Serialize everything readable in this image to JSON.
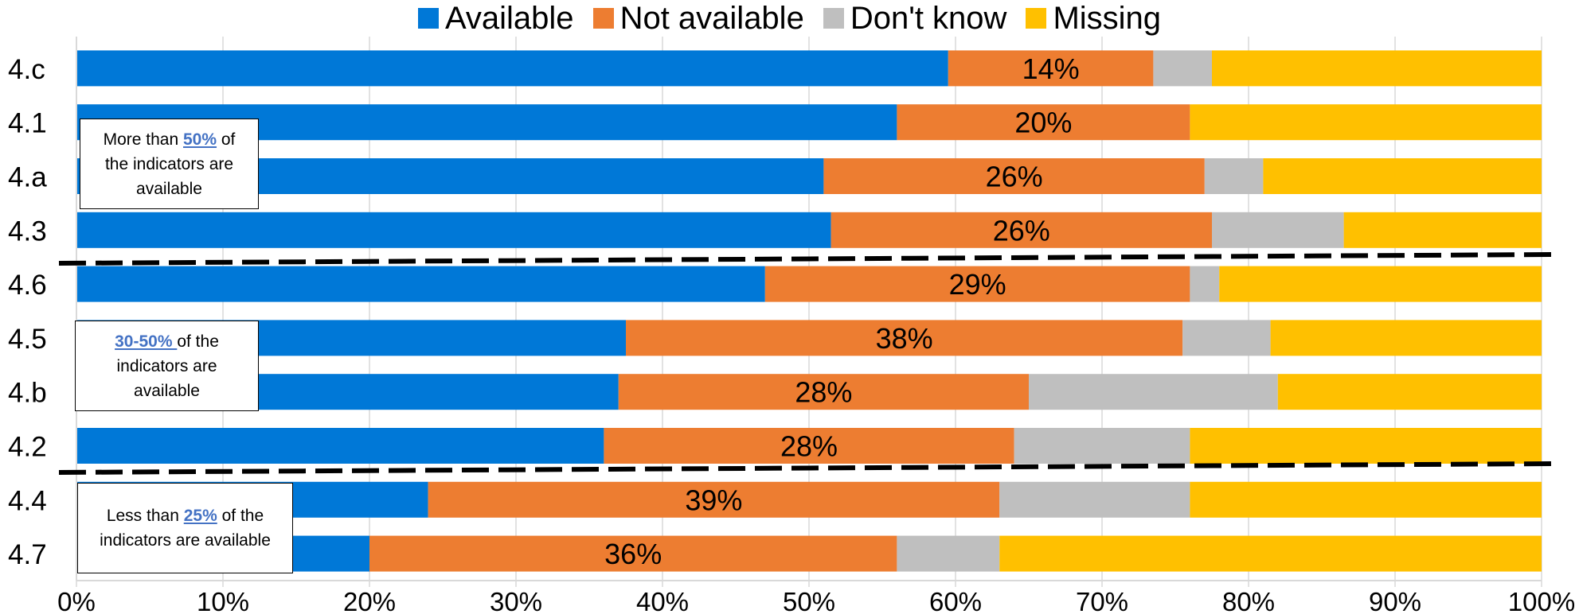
{
  "chart_data": {
    "type": "bar",
    "orientation": "horizontal",
    "stacked": true,
    "categories": [
      "4.c",
      "4.1",
      "4.a",
      "4.3",
      "4.6",
      "4.5",
      "4.b",
      "4.2",
      "4.4",
      "4.7"
    ],
    "series": [
      {
        "name": "Available",
        "color": "#0078D7",
        "values": [
          59.5,
          56,
          51,
          51.5,
          47,
          37.5,
          37,
          36,
          24,
          20
        ]
      },
      {
        "name": "Not available",
        "color": "#ED7D31",
        "values": [
          14,
          20,
          26,
          26,
          29,
          38,
          28,
          28,
          39,
          36
        ]
      },
      {
        "name": "Don't know",
        "color": "#BFBFBF",
        "values": [
          4,
          0,
          4,
          9,
          2,
          6,
          17,
          12,
          13,
          7
        ]
      },
      {
        "name": "Missing",
        "color": "#FFC000",
        "values": [
          22.5,
          24,
          19,
          13.5,
          22,
          18.5,
          18,
          24,
          24,
          37
        ]
      }
    ],
    "data_labels": [
      "14%",
      "20%",
      "26%",
      "26%",
      "29%",
      "38%",
      "28%",
      "28%",
      "39%",
      "36%"
    ],
    "x_ticks": [
      "0%",
      "10%",
      "20%",
      "30%",
      "40%",
      "50%",
      "60%",
      "70%",
      "80%",
      "90%",
      "100%"
    ],
    "xlim": [
      0,
      100
    ],
    "grid": "vertical",
    "legend_position": "top",
    "annotations": [
      {
        "pre": "More than ",
        "highlight": "50%",
        "post": " of the indicators are available"
      },
      {
        "pre": "",
        "highlight": "30-50% ",
        "post": "of the indicators are available"
      },
      {
        "pre": "Less than ",
        "highlight": "25%",
        "post": " of the indicators are available"
      }
    ]
  }
}
